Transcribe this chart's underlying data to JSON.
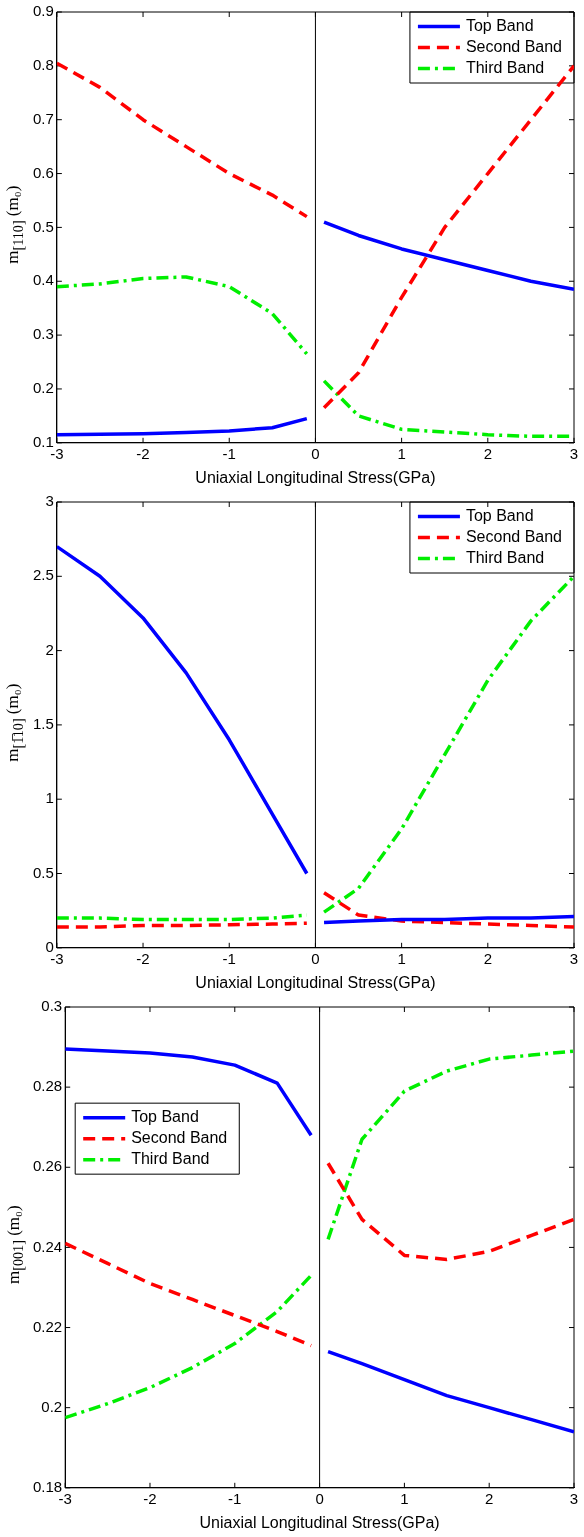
{
  "chart_data": [
    {
      "type": "line",
      "xlabel": "Uniaxial Longitudinal Stress(GPa)",
      "ylabel": "m$_{[110]}$ (m₀)",
      "x": [
        -3,
        -2.5,
        -2,
        -1.5,
        -1,
        -0.5,
        -0.1,
        0,
        0.1,
        0.5,
        1,
        1.5,
        2,
        2.5,
        3
      ],
      "xlim": [
        -3,
        3
      ],
      "xticks": [
        -3,
        -2,
        -1,
        0,
        1,
        2,
        3
      ],
      "ylim": [
        0.1,
        0.9
      ],
      "yticks": [
        0.1,
        0.2,
        0.3,
        0.4,
        0.5,
        0.6,
        0.7,
        0.8,
        0.9
      ],
      "grid": false,
      "legend": "top right",
      "marker": "none",
      "ref_lines": [
        {
          "axis": "x",
          "value": 0,
          "color": "#000000"
        }
      ],
      "series": [
        {
          "name": "Top Band",
          "color": "#0000ff",
          "line_style": "solid",
          "values": [
            0.115,
            0.116,
            0.117,
            0.119,
            0.122,
            0.128,
            0.145,
            null,
            0.51,
            0.485,
            0.46,
            0.44,
            0.42,
            0.4,
            0.385
          ]
        },
        {
          "name": "Second Band",
          "color": "#ff0000",
          "line_style": "dashed",
          "values": [
            0.805,
            0.76,
            0.7,
            0.65,
            0.6,
            0.56,
            0.52,
            null,
            0.165,
            0.23,
            0.37,
            0.5,
            0.6,
            0.7,
            0.8
          ]
        },
        {
          "name": "Third Band",
          "color": "#00ee00",
          "line_style": "dashdot",
          "values": [
            0.39,
            0.395,
            0.405,
            0.408,
            0.39,
            0.34,
            0.265,
            null,
            0.215,
            0.15,
            0.125,
            0.12,
            0.115,
            0.112,
            0.112
          ]
        }
      ]
    },
    {
      "type": "line",
      "xlabel": "Uniaxial Longitudinal Stress(GPa)",
      "ylabel": "m$_{[1̅10]}$ (m₀)",
      "x": [
        -3,
        -2.5,
        -2,
        -1.5,
        -1,
        -0.5,
        -0.1,
        0,
        0.1,
        0.5,
        1,
        1.5,
        2,
        2.5,
        3
      ],
      "xlim": [
        -3,
        3
      ],
      "xticks": [
        -3,
        -2,
        -1,
        0,
        1,
        2,
        3
      ],
      "ylim": [
        0,
        3
      ],
      "yticks": [
        0,
        0.5,
        1,
        1.5,
        2,
        2.5,
        3
      ],
      "grid": false,
      "legend": "top right",
      "marker": "none",
      "ref_lines": [
        {
          "axis": "x",
          "value": 0,
          "color": "#000000"
        }
      ],
      "series": [
        {
          "name": "Top Band",
          "color": "#0000ff",
          "line_style": "solid",
          "values": [
            2.7,
            2.5,
            2.22,
            1.85,
            1.4,
            0.9,
            0.5,
            null,
            0.17,
            0.18,
            0.19,
            0.19,
            0.2,
            0.2,
            0.21
          ]
        },
        {
          "name": "Second Band",
          "color": "#ff0000",
          "line_style": "dashed",
          "values": [
            0.14,
            0.14,
            0.15,
            0.15,
            0.155,
            0.16,
            0.165,
            null,
            0.37,
            0.22,
            0.18,
            0.17,
            0.16,
            0.15,
            0.14
          ]
        },
        {
          "name": "Third Band",
          "color": "#00ee00",
          "line_style": "dashdot",
          "values": [
            0.2,
            0.2,
            0.19,
            0.19,
            0.19,
            0.2,
            0.22,
            null,
            0.24,
            0.4,
            0.8,
            1.3,
            1.8,
            2.2,
            2.5
          ]
        }
      ]
    },
    {
      "type": "line",
      "xlabel": "Uniaxial Longitudinal Stress(GPa)",
      "ylabel": "m$_{[001]}$ (m₀)",
      "x": [
        -3,
        -2.5,
        -2,
        -1.5,
        -1,
        -0.5,
        -0.1,
        0,
        0.1,
        0.5,
        1,
        1.5,
        2,
        2.5,
        3
      ],
      "xlim": [
        -3,
        3
      ],
      "xticks": [
        -3,
        -2,
        -1,
        0,
        1,
        2,
        3
      ],
      "ylim": [
        0.18,
        0.3
      ],
      "yticks": [
        0.18,
        0.2,
        0.22,
        0.24,
        0.26,
        0.28,
        0.3
      ],
      "grid": false,
      "legend": "center left",
      "marker": "none",
      "ref_lines": [
        {
          "axis": "x",
          "value": 0,
          "color": "#000000"
        }
      ],
      "series": [
        {
          "name": "Top Band",
          "color": "#0000ff",
          "line_style": "solid",
          "values": [
            0.2895,
            0.289,
            0.2885,
            0.2875,
            0.2855,
            0.281,
            0.268,
            null,
            0.214,
            0.211,
            0.207,
            0.203,
            0.2,
            0.197,
            0.194
          ]
        },
        {
          "name": "Second Band",
          "color": "#ff0000",
          "line_style": "dashed",
          "values": [
            0.241,
            0.236,
            0.231,
            0.227,
            0.223,
            0.219,
            0.2155,
            null,
            0.261,
            0.247,
            0.238,
            0.237,
            0.239,
            0.243,
            0.247
          ]
        },
        {
          "name": "Third Band",
          "color": "#00ee00",
          "line_style": "dashdot",
          "values": [
            0.1975,
            0.201,
            0.205,
            0.21,
            0.216,
            0.224,
            0.233,
            null,
            0.242,
            0.267,
            0.279,
            0.284,
            0.287,
            0.288,
            0.289
          ]
        }
      ]
    }
  ]
}
